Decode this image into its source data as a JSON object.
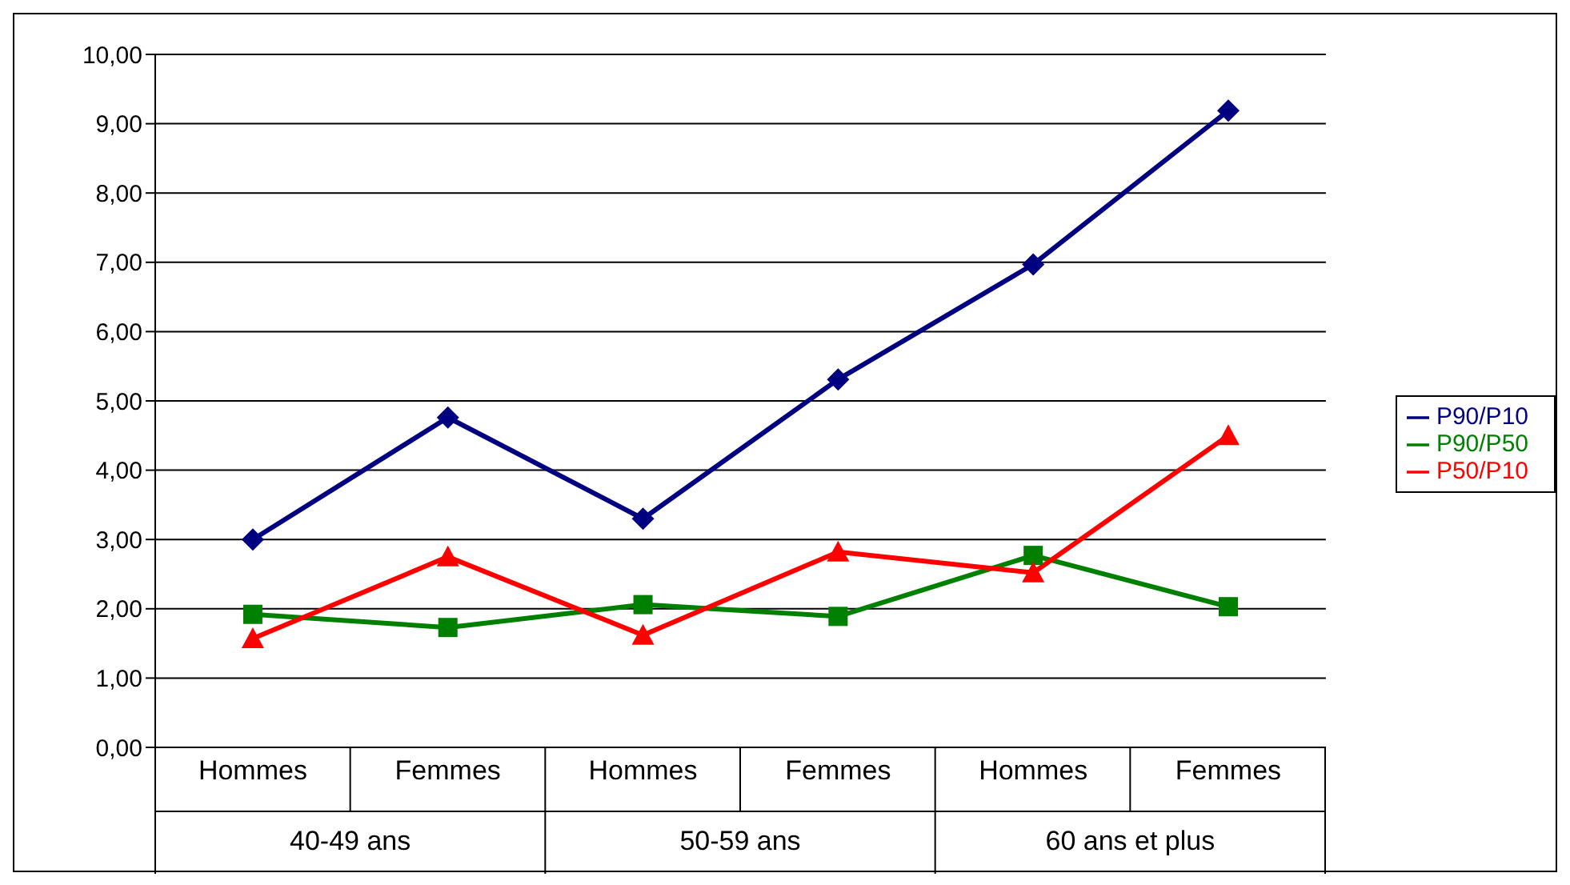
{
  "chart_data": {
    "type": "line",
    "categories": [
      "Hommes",
      "Femmes",
      "Hommes",
      "Femmes",
      "Hommes",
      "Femmes"
    ],
    "annotations": [
      "40-49 ans",
      "50-59 ans",
      "60 ans et plus"
    ],
    "series": [
      {
        "name": "P90/P10",
        "color": "#000080",
        "marker": "diamond",
        "values": [
          3.0,
          4.76,
          3.3,
          5.31,
          6.97,
          9.19
        ]
      },
      {
        "name": "P90/P50",
        "color": "#008000",
        "marker": "square",
        "values": [
          1.92,
          1.73,
          2.06,
          1.89,
          2.77,
          2.03
        ]
      },
      {
        "name": "P50/P10",
        "color": "#ff0000",
        "marker": "triangle",
        "values": [
          1.57,
          2.75,
          1.62,
          2.82,
          2.52,
          4.5
        ]
      }
    ],
    "ylim": [
      0,
      10
    ],
    "yticks": [
      {
        "value": 0,
        "label": "0,00"
      },
      {
        "value": 1,
        "label": "1,00"
      },
      {
        "value": 2,
        "label": "2,00"
      },
      {
        "value": 3,
        "label": "3,00"
      },
      {
        "value": 4,
        "label": "4,00"
      },
      {
        "value": 5,
        "label": "5,00"
      },
      {
        "value": 6,
        "label": "6,00"
      },
      {
        "value": 7,
        "label": "7,00"
      },
      {
        "value": 8,
        "label": "8,00"
      },
      {
        "value": 9,
        "label": "9,00"
      },
      {
        "value": 10,
        "label": "10,00"
      }
    ],
    "grid": "y",
    "legend": "right",
    "line_style": "solid"
  }
}
